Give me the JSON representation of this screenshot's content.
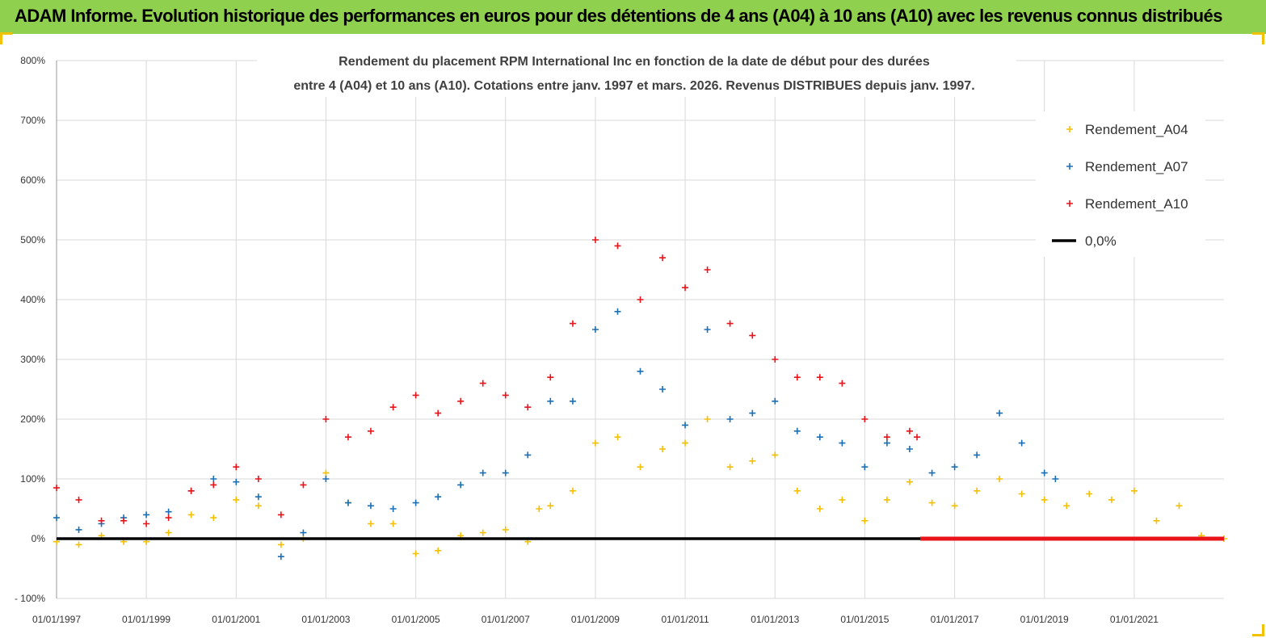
{
  "header": {
    "title": "ADAM Informe. Evolution historique des performances en euros pour des détentions de 4 ans (A04) à 10 ans (A10) avec les revenus connus distribués"
  },
  "chart_data": {
    "type": "scatter",
    "title": "",
    "subtitle_lines": [
      "Rendement du placement RPM International Inc en fonction de la date de début pour des durées",
      "entre 4 (A04) et 10 ans (A10).  Cotations entre janv. 1997 et mars. 2026. Revenus DISTRIBUES depuis janv. 1997."
    ],
    "xlabel": "",
    "ylabel": "",
    "x_axis": {
      "min": "1997-01-01",
      "max": "2023-01-01",
      "tick_labels": [
        "01/01/1997",
        "01/01/1999",
        "01/01/2001",
        "01/01/2003",
        "01/01/2005",
        "01/01/2007",
        "01/01/2009",
        "01/01/2011",
        "01/01/2013",
        "01/01/2015",
        "01/01/2017",
        "01/01/2019",
        "01/01/2021"
      ]
    },
    "y_axis": {
      "min": -100,
      "max": 800,
      "unit": "%",
      "tick_labels": [
        "- 100%",
        "0%",
        "100%",
        "200%",
        "300%",
        "400%",
        "500%",
        "600%",
        "700%",
        "800%"
      ]
    },
    "grid": "horizontal",
    "legend_position": "right",
    "series": [
      {
        "name": "Rendement_A04",
        "color": "#f5bf00",
        "marker": "+",
        "points": [
          [
            "1997-01-01",
            -5
          ],
          [
            "1997-07-01",
            -10
          ],
          [
            "1998-01-01",
            5
          ],
          [
            "1998-07-01",
            -5
          ],
          [
            "1999-01-01",
            -5
          ],
          [
            "1999-07-01",
            10
          ],
          [
            "2000-01-01",
            40
          ],
          [
            "2000-07-01",
            35
          ],
          [
            "2001-01-01",
            65
          ],
          [
            "2001-07-01",
            55
          ],
          [
            "2002-01-01",
            -10
          ],
          [
            "2002-07-01",
            0
          ],
          [
            "2003-01-01",
            110
          ],
          [
            "2003-07-01",
            60
          ],
          [
            "2004-01-01",
            25
          ],
          [
            "2004-07-01",
            25
          ],
          [
            "2005-01-01",
            -25
          ],
          [
            "2005-07-01",
            -20
          ],
          [
            "2006-01-01",
            5
          ],
          [
            "2006-07-01",
            10
          ],
          [
            "2007-01-01",
            15
          ],
          [
            "2007-07-01",
            -5
          ],
          [
            "2007-10-01",
            50
          ],
          [
            "2008-01-01",
            55
          ],
          [
            "2008-07-01",
            80
          ],
          [
            "2009-01-01",
            160
          ],
          [
            "2009-07-01",
            170
          ],
          [
            "2010-01-01",
            120
          ],
          [
            "2010-07-01",
            150
          ],
          [
            "2011-01-01",
            160
          ],
          [
            "2011-07-01",
            200
          ],
          [
            "2012-01-01",
            120
          ],
          [
            "2012-07-01",
            130
          ],
          [
            "2013-01-01",
            140
          ],
          [
            "2013-07-01",
            80
          ],
          [
            "2014-01-01",
            50
          ],
          [
            "2014-07-01",
            65
          ],
          [
            "2015-01-01",
            30
          ],
          [
            "2015-07-01",
            65
          ],
          [
            "2016-01-01",
            95
          ],
          [
            "2016-07-01",
            60
          ],
          [
            "2017-01-01",
            55
          ],
          [
            "2017-07-01",
            80
          ],
          [
            "2018-01-01",
            100
          ],
          [
            "2018-07-01",
            75
          ],
          [
            "2019-01-01",
            65
          ],
          [
            "2019-07-01",
            55
          ],
          [
            "2020-01-01",
            75
          ],
          [
            "2020-07-01",
            65
          ],
          [
            "2021-01-01",
            80
          ],
          [
            "2021-07-01",
            30
          ],
          [
            "2022-01-01",
            55
          ],
          [
            "2022-07-01",
            5
          ],
          [
            "2023-01-01",
            0
          ]
        ]
      },
      {
        "name": "Rendement_A07",
        "color": "#1b6fb5",
        "marker": "+",
        "points": [
          [
            "1997-01-01",
            35
          ],
          [
            "1997-07-01",
            15
          ],
          [
            "1998-01-01",
            25
          ],
          [
            "1998-07-01",
            35
          ],
          [
            "1999-01-01",
            40
          ],
          [
            "1999-07-01",
            45
          ],
          [
            "2000-01-01",
            80
          ],
          [
            "2000-07-01",
            100
          ],
          [
            "2001-01-01",
            95
          ],
          [
            "2001-07-01",
            70
          ],
          [
            "2002-01-01",
            -30
          ],
          [
            "2002-07-01",
            10
          ],
          [
            "2003-01-01",
            100
          ],
          [
            "2003-07-01",
            60
          ],
          [
            "2004-01-01",
            55
          ],
          [
            "2004-07-01",
            50
          ],
          [
            "2005-01-01",
            60
          ],
          [
            "2005-07-01",
            70
          ],
          [
            "2006-01-01",
            90
          ],
          [
            "2006-07-01",
            110
          ],
          [
            "2007-01-01",
            110
          ],
          [
            "2007-07-01",
            140
          ],
          [
            "2008-01-01",
            230
          ],
          [
            "2008-07-01",
            230
          ],
          [
            "2009-01-01",
            350
          ],
          [
            "2009-07-01",
            380
          ],
          [
            "2010-01-01",
            280
          ],
          [
            "2010-07-01",
            250
          ],
          [
            "2011-01-01",
            190
          ],
          [
            "2011-07-01",
            350
          ],
          [
            "2012-01-01",
            200
          ],
          [
            "2012-07-01",
            210
          ],
          [
            "2013-01-01",
            230
          ],
          [
            "2013-07-01",
            180
          ],
          [
            "2014-01-01",
            170
          ],
          [
            "2014-07-01",
            160
          ],
          [
            "2015-01-01",
            120
          ],
          [
            "2015-07-01",
            160
          ],
          [
            "2016-01-01",
            150
          ],
          [
            "2016-07-01",
            110
          ],
          [
            "2017-01-01",
            120
          ],
          [
            "2017-07-01",
            140
          ],
          [
            "2018-01-01",
            210
          ],
          [
            "2018-07-01",
            160
          ],
          [
            "2019-01-01",
            110
          ],
          [
            "2019-04-01",
            100
          ]
        ]
      },
      {
        "name": "Rendement_A10",
        "color": "#e8141a",
        "marker": "+",
        "points": [
          [
            "1997-01-01",
            85
          ],
          [
            "1997-07-01",
            65
          ],
          [
            "1998-01-01",
            30
          ],
          [
            "1998-07-01",
            30
          ],
          [
            "1999-01-01",
            25
          ],
          [
            "1999-07-01",
            35
          ],
          [
            "2000-01-01",
            80
          ],
          [
            "2000-07-01",
            90
          ],
          [
            "2001-01-01",
            120
          ],
          [
            "2001-07-01",
            100
          ],
          [
            "2002-01-01",
            40
          ],
          [
            "2002-07-01",
            90
          ],
          [
            "2003-01-01",
            200
          ],
          [
            "2003-07-01",
            170
          ],
          [
            "2004-01-01",
            180
          ],
          [
            "2004-07-01",
            220
          ],
          [
            "2005-01-01",
            240
          ],
          [
            "2005-07-01",
            210
          ],
          [
            "2006-01-01",
            230
          ],
          [
            "2006-07-01",
            260
          ],
          [
            "2007-01-01",
            240
          ],
          [
            "2007-07-01",
            220
          ],
          [
            "2008-01-01",
            270
          ],
          [
            "2008-07-01",
            360
          ],
          [
            "2009-01-01",
            500
          ],
          [
            "2009-07-01",
            490
          ],
          [
            "2010-01-01",
            400
          ],
          [
            "2010-07-01",
            470
          ],
          [
            "2011-01-01",
            420
          ],
          [
            "2011-07-01",
            450
          ],
          [
            "2012-01-01",
            360
          ],
          [
            "2012-07-01",
            340
          ],
          [
            "2013-01-01",
            300
          ],
          [
            "2013-07-01",
            270
          ],
          [
            "2014-01-01",
            270
          ],
          [
            "2014-07-01",
            260
          ],
          [
            "2015-01-01",
            200
          ],
          [
            "2015-07-01",
            170
          ],
          [
            "2016-01-01",
            180
          ],
          [
            "2016-03-01",
            170
          ]
        ]
      },
      {
        "name": "0,0%",
        "color": "#000000",
        "type": "line",
        "points": [
          [
            "1997-01-01",
            0
          ],
          [
            "2023-01-01",
            0
          ]
        ]
      }
    ]
  }
}
